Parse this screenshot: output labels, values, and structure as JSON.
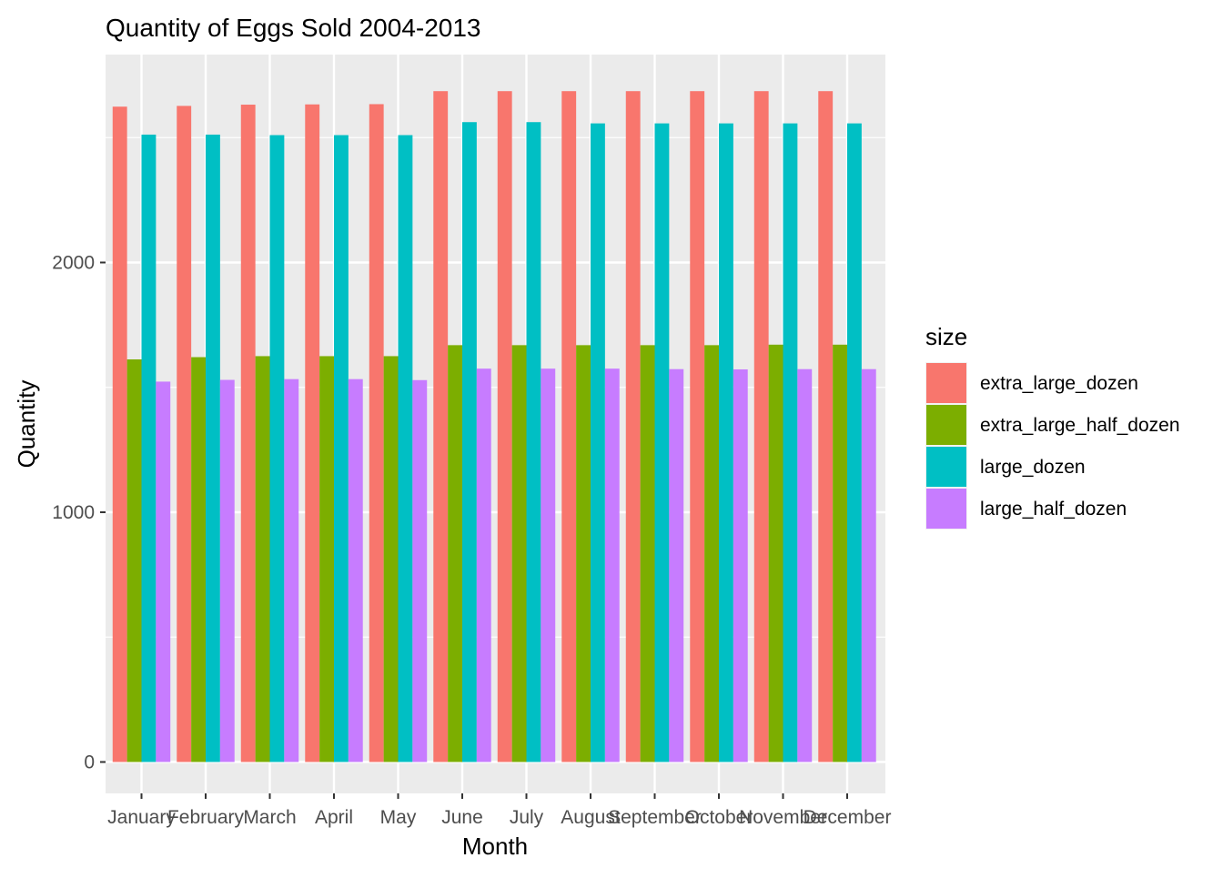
{
  "chart_data": {
    "type": "bar",
    "title": "Quantity of Eggs Sold 2004-2013",
    "xlabel": "Month",
    "ylabel": "Quantity",
    "ylim": [
      -130,
      2830
    ],
    "yticks": [
      0,
      1000,
      2000
    ],
    "grid": true,
    "legend_title": "size",
    "legend_position": "right",
    "categories": [
      "January",
      "February",
      "March",
      "April",
      "May",
      "June",
      "July",
      "August",
      "September",
      "October",
      "November",
      "December"
    ],
    "series": [
      {
        "name": "extra_large_dozen",
        "color": "#F8766D",
        "values": [
          2624,
          2627,
          2632,
          2633,
          2634,
          2686,
          2686,
          2686,
          2686,
          2686,
          2686,
          2686
        ]
      },
      {
        "name": "extra_large_half_dozen",
        "color": "#7CAE00",
        "values": [
          1612,
          1621,
          1625,
          1625,
          1625,
          1669,
          1669,
          1669,
          1669,
          1669,
          1671,
          1671
        ]
      },
      {
        "name": "large_dozen",
        "color": "#00BFC4",
        "values": [
          2512,
          2512,
          2510,
          2510,
          2510,
          2562,
          2562,
          2557,
          2557,
          2557,
          2557,
          2557
        ]
      },
      {
        "name": "large_half_dozen",
        "color": "#C77CFF",
        "values": [
          1523,
          1530,
          1533,
          1533,
          1529,
          1575,
          1575,
          1575,
          1573,
          1572,
          1573,
          1573
        ]
      }
    ]
  }
}
